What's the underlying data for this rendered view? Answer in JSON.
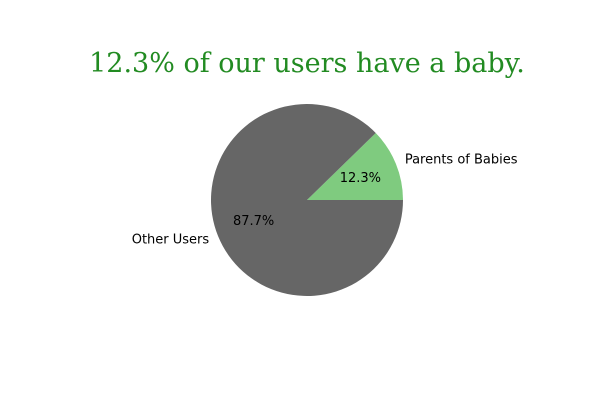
{
  "chart_data": {
    "type": "pie",
    "title": "12.3% of our users have a baby.",
    "title_color": "#228b22",
    "start_angle_deg": 0,
    "direction": "counterclockwise",
    "slices": [
      {
        "label": "Parents of Babies",
        "value": 12.3,
        "pct_label": "12.3%",
        "color": "#7fcb7f"
      },
      {
        "label": "Other Users",
        "value": 87.7,
        "pct_label": "87.7%",
        "color": "#666666"
      }
    ]
  }
}
